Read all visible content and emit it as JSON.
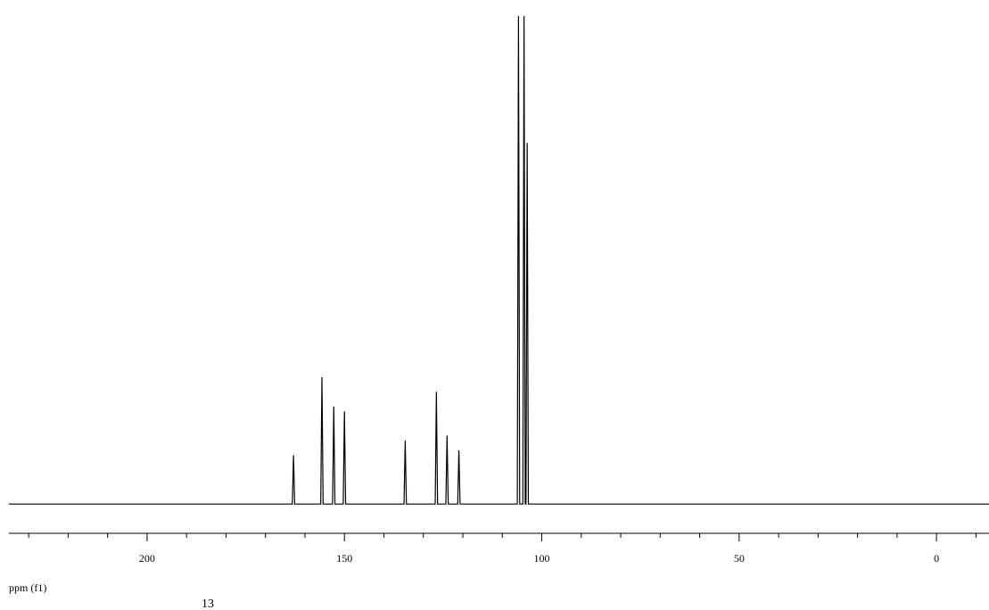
{
  "chart_data": {
    "type": "line",
    "x_label": "ppm (f1)",
    "caption": "13",
    "x": [
      235,
      163.2,
      162.9,
      162.6,
      156.0,
      155.7,
      155.4,
      153.0,
      152.7,
      152.4,
      150.3,
      150.0,
      149.7,
      134.9,
      134.6,
      134.3,
      127.0,
      126.7,
      126.4,
      124.3,
      124.0,
      123.7,
      121.3,
      121.0,
      120.7,
      106.2,
      105.9,
      105.6,
      104.8,
      104.5,
      104.2,
      104.0,
      103.7,
      103.4,
      -13.3
    ],
    "values": [
      0,
      0,
      10,
      0,
      0,
      26,
      0,
      0,
      20,
      0,
      0,
      19,
      0,
      0,
      13,
      0,
      0,
      23,
      0,
      0,
      14,
      0,
      0,
      11,
      0,
      0,
      100,
      0,
      0,
      100,
      0,
      0,
      74,
      0,
      0
    ],
    "color": "#000000",
    "xlim": [
      235,
      -13.3
    ],
    "ylim": [
      -6,
      100
    ],
    "xticks": [
      200,
      150,
      100,
      50,
      0
    ],
    "xminorticks": [
      230,
      220,
      210,
      190,
      180,
      170,
      160,
      140,
      130,
      120,
      110,
      90,
      80,
      70,
      60,
      40,
      30,
      20,
      10,
      -10
    ]
  }
}
